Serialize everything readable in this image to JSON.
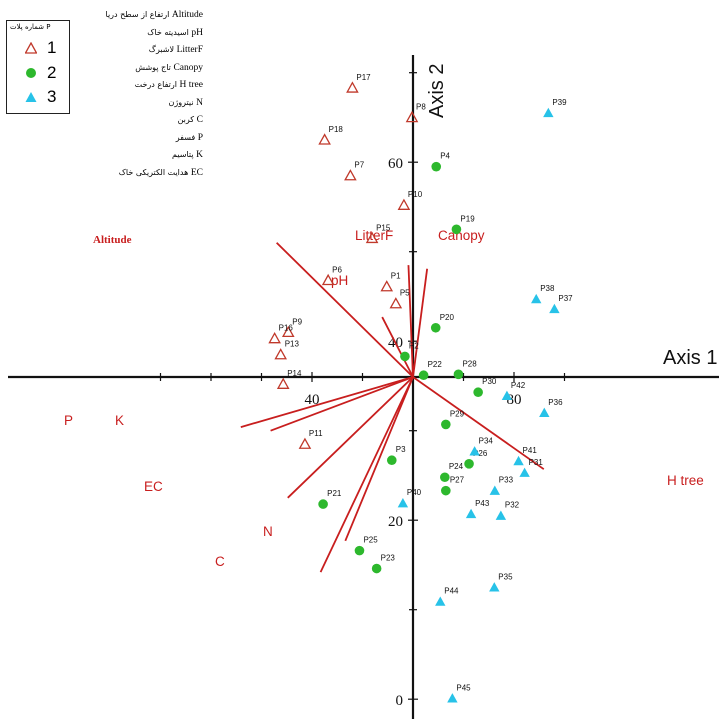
{
  "chart_data": {
    "type": "scatter",
    "xlabel": "Axis 1",
    "ylabel": "Axis 2",
    "x_ticks": [
      40,
      80
    ],
    "y_ticks": [
      0,
      20,
      40,
      60
    ],
    "legend_title": "P شماره پلات",
    "series": [
      {
        "name": "1",
        "marker": "triangle-open",
        "color": "#c0392b",
        "points": [
          {
            "label": "P17",
            "x": 48.0,
            "y": 68.3
          },
          {
            "label": "P8",
            "x": 59.8,
            "y": 65.0
          },
          {
            "label": "P18",
            "x": 42.5,
            "y": 62.5
          },
          {
            "label": "P7",
            "x": 47.6,
            "y": 58.5
          },
          {
            "label": "P10",
            "x": 58.2,
            "y": 55.2
          },
          {
            "label": "P15",
            "x": 51.9,
            "y": 51.5
          },
          {
            "label": "P6",
            "x": 43.2,
            "y": 46.8
          },
          {
            "label": "P1",
            "x": 54.8,
            "y": 46.1
          },
          {
            "label": "P5",
            "x": 56.6,
            "y": 44.2
          },
          {
            "label": "P9",
            "x": 35.3,
            "y": 41.0
          },
          {
            "label": "P16",
            "x": 32.6,
            "y": 40.3
          },
          {
            "label": "P13",
            "x": 33.8,
            "y": 38.5
          },
          {
            "label": "P14",
            "x": 34.3,
            "y": 35.2
          },
          {
            "label": "P11",
            "x": 38.6,
            "y": 28.5
          }
        ]
      },
      {
        "name": "2",
        "marker": "circle",
        "color": "#2db82d",
        "points": [
          {
            "label": "P4",
            "x": 64.6,
            "y": 59.5
          },
          {
            "label": "P19",
            "x": 68.6,
            "y": 52.5
          },
          {
            "label": "P20",
            "x": 64.5,
            "y": 41.5
          },
          {
            "label": "P2",
            "x": 58.4,
            "y": 38.3
          },
          {
            "label": "P22",
            "x": 62.1,
            "y": 36.2
          },
          {
            "label": "P28",
            "x": 69.0,
            "y": 36.3
          },
          {
            "label": "P30",
            "x": 72.9,
            "y": 34.3
          },
          {
            "label": "P29",
            "x": 66.5,
            "y": 30.7
          },
          {
            "label": "P3",
            "x": 55.8,
            "y": 26.7
          },
          {
            "label": "P26",
            "x": 71.1,
            "y": 26.3
          },
          {
            "label": "P24",
            "x": 66.3,
            "y": 24.8
          },
          {
            "label": "P27",
            "x": 66.5,
            "y": 23.3
          },
          {
            "label": "P21",
            "x": 42.2,
            "y": 21.8
          },
          {
            "label": "P25",
            "x": 49.4,
            "y": 16.6
          },
          {
            "label": "P23",
            "x": 52.8,
            "y": 14.6
          }
        ]
      },
      {
        "name": "3",
        "marker": "triangle",
        "color": "#27c2e8",
        "points": [
          {
            "label": "P39",
            "x": 86.8,
            "y": 65.5
          },
          {
            "label": "P38",
            "x": 84.4,
            "y": 44.7
          },
          {
            "label": "P37",
            "x": 88.0,
            "y": 43.6
          },
          {
            "label": "P42",
            "x": 78.6,
            "y": 33.9
          },
          {
            "label": "P36",
            "x": 86.0,
            "y": 32.0
          },
          {
            "label": "P34",
            "x": 72.2,
            "y": 27.7
          },
          {
            "label": "P41",
            "x": 80.9,
            "y": 26.6
          },
          {
            "label": "P31",
            "x": 82.1,
            "y": 25.3
          },
          {
            "label": "P33",
            "x": 76.2,
            "y": 23.3
          },
          {
            "label": "P43",
            "x": 71.5,
            "y": 20.7
          },
          {
            "label": "P32",
            "x": 77.4,
            "y": 20.5
          },
          {
            "label": "P40",
            "x": 58.0,
            "y": 21.9
          },
          {
            "label": "P35",
            "x": 76.1,
            "y": 12.5
          },
          {
            "label": "P44",
            "x": 65.4,
            "y": 10.9
          },
          {
            "label": "P45",
            "x": 67.8,
            "y": 0.1
          }
        ]
      }
    ],
    "vectors": [
      {
        "label": "Altitude",
        "x": 33.0,
        "y": 51.0,
        "style": "serif"
      },
      {
        "label": "LitterF",
        "x": 59.1,
        "y": 48.5
      },
      {
        "label": "Canopy",
        "x": 62.8,
        "y": 48.1
      },
      {
        "label": "pH",
        "x": 53.9,
        "y": 42.7
      },
      {
        "label": "P",
        "x": 25.9,
        "y": 30.4
      },
      {
        "label": "K",
        "x": 31.8,
        "y": 30.0
      },
      {
        "label": "EC",
        "x": 35.2,
        "y": 22.5
      },
      {
        "label": "N",
        "x": 46.6,
        "y": 17.7
      },
      {
        "label": "C",
        "x": 41.7,
        "y": 14.2
      },
      {
        "label": "H tree",
        "x": 85.9,
        "y": 25.7
      }
    ],
    "variable_key": [
      {
        "abbr": "Altitude",
        "text": "ارتفاع از سطح دریا"
      },
      {
        "abbr": "pH",
        "text": "اسیدیته خاک"
      },
      {
        "abbr": "LitterF",
        "text": "لاشبرگ"
      },
      {
        "abbr": "Canopy",
        "text": "تاج پوشش"
      },
      {
        "abbr": "H tree",
        "text": "ارتفاع درخت"
      },
      {
        "abbr": "N",
        "text": "نیتروژن"
      },
      {
        "abbr": "C",
        "text": "کربن"
      },
      {
        "abbr": "P",
        "text": "فسفر"
      },
      {
        "abbr": "K",
        "text": "پتاسیم"
      },
      {
        "abbr": "EC",
        "text": "هدایت الکتریکی خاک"
      }
    ]
  }
}
